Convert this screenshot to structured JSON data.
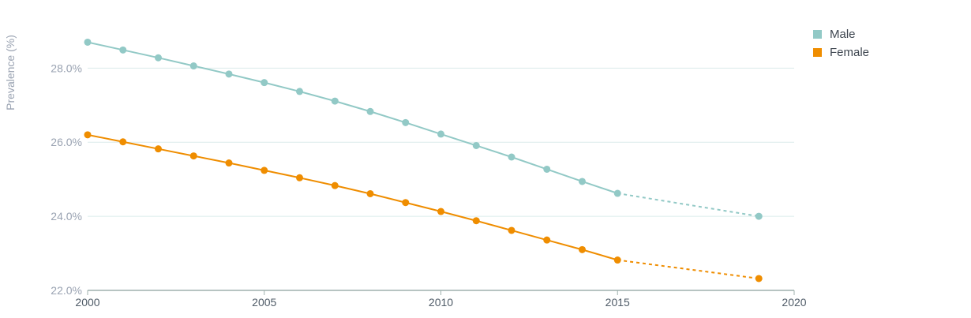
{
  "chart_data": {
    "type": "line",
    "title": "",
    "xlabel": "",
    "ylabel": "Prevalence (%)",
    "xlim": [
      2000,
      2020
    ],
    "ylim": [
      22,
      29.2
    ],
    "x_ticks": [
      2000,
      2005,
      2010,
      2015,
      2020
    ],
    "x_tick_labels": [
      "2000",
      "2005",
      "2010",
      "2015",
      "2020"
    ],
    "y_ticks": [
      22,
      24,
      26,
      28
    ],
    "y_tick_labels": [
      "22.0%",
      "24.0%",
      "26.0%",
      "28.0%"
    ],
    "grid": true,
    "legend": "top-right",
    "series": [
      {
        "name": "Male",
        "color": "#92c9c6",
        "x": [
          2000,
          2001,
          2002,
          2003,
          2004,
          2005,
          2006,
          2007,
          2008,
          2009,
          2010,
          2011,
          2012,
          2013,
          2014,
          2015
        ],
        "values": [
          28.7,
          28.49,
          28.28,
          28.06,
          27.84,
          27.61,
          27.37,
          27.11,
          26.83,
          26.53,
          26.22,
          25.91,
          25.6,
          25.27,
          24.94,
          24.62
        ],
        "projection": {
          "x": [
            2015,
            2019
          ],
          "values": [
            24.62,
            24.0
          ]
        }
      },
      {
        "name": "Female",
        "color": "#ef8d00",
        "x": [
          2000,
          2001,
          2002,
          2003,
          2004,
          2005,
          2006,
          2007,
          2008,
          2009,
          2010,
          2011,
          2012,
          2013,
          2014,
          2015
        ],
        "values": [
          26.2,
          26.01,
          25.82,
          25.63,
          25.44,
          25.24,
          25.04,
          24.83,
          24.61,
          24.37,
          24.13,
          23.88,
          23.62,
          23.36,
          23.1,
          22.82
        ],
        "projection": {
          "x": [
            2015,
            2019
          ],
          "values": [
            22.82,
            22.32
          ]
        }
      }
    ]
  }
}
